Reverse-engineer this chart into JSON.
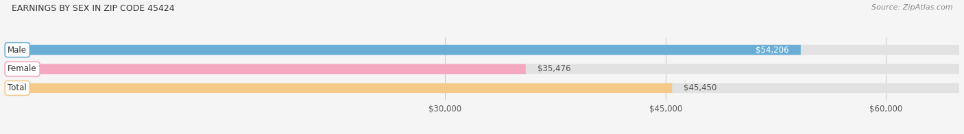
{
  "title": "EARNINGS BY SEX IN ZIP CODE 45424",
  "source": "Source: ZipAtlas.com",
  "categories": [
    "Male",
    "Female",
    "Total"
  ],
  "values": [
    54206,
    35476,
    45450
  ],
  "bar_colors": [
    "#6aaed6",
    "#f4a8c0",
    "#f5c98a"
  ],
  "track_color": "#e2e2e2",
  "track_border_color": "#d0d0d0",
  "label_bg_color": "#ffffff",
  "xlim_min": 0,
  "xlim_max": 65000,
  "display_min": 0,
  "xticks": [
    30000,
    45000,
    60000
  ],
  "xtick_labels": [
    "$30,000",
    "$45,000",
    "$60,000"
  ],
  "value_labels": [
    "$54,206",
    "$35,476",
    "$45,450"
  ],
  "value_label_inside": [
    true,
    false,
    false
  ],
  "bar_height": 0.52,
  "figsize": [
    14.06,
    1.96
  ],
  "dpi": 100,
  "bg_color": "#f5f5f5"
}
